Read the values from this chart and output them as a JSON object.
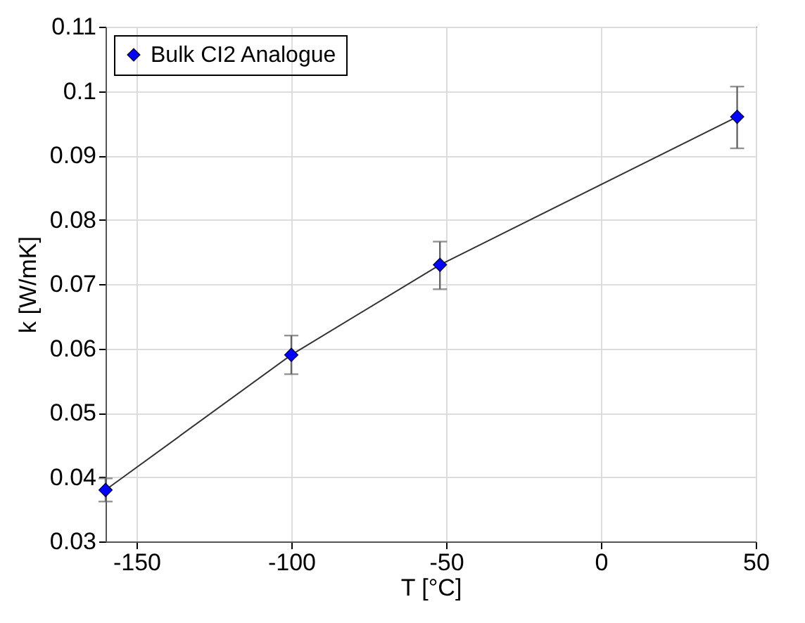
{
  "chart_data": {
    "type": "line",
    "xlabel": "T [°C]",
    "ylabel": "k [W/mK]",
    "x": [
      -160,
      -100,
      -52,
      44
    ],
    "series": [
      {
        "name": "Bulk CI2 Analogue",
        "color": "#0000ff",
        "values": [
          0.038,
          0.059,
          0.073,
          0.096
        ],
        "errors": [
          [
            0.0362,
            0.0398
          ],
          [
            0.056,
            0.062
          ],
          [
            0.0692,
            0.0766
          ],
          [
            0.0911,
            0.1007
          ]
        ]
      }
    ],
    "xlim": [
      -160,
      50
    ],
    "xticks": [
      -150,
      -100,
      -50,
      0,
      50
    ],
    "ylim": [
      0.03,
      0.11
    ],
    "yticks": [
      0.03,
      0.04,
      0.05,
      0.06,
      0.07,
      0.08,
      0.09,
      0.1,
      0.11
    ],
    "grid": true,
    "legend": "top left",
    "marker": "diamond",
    "line_style": "solid"
  }
}
